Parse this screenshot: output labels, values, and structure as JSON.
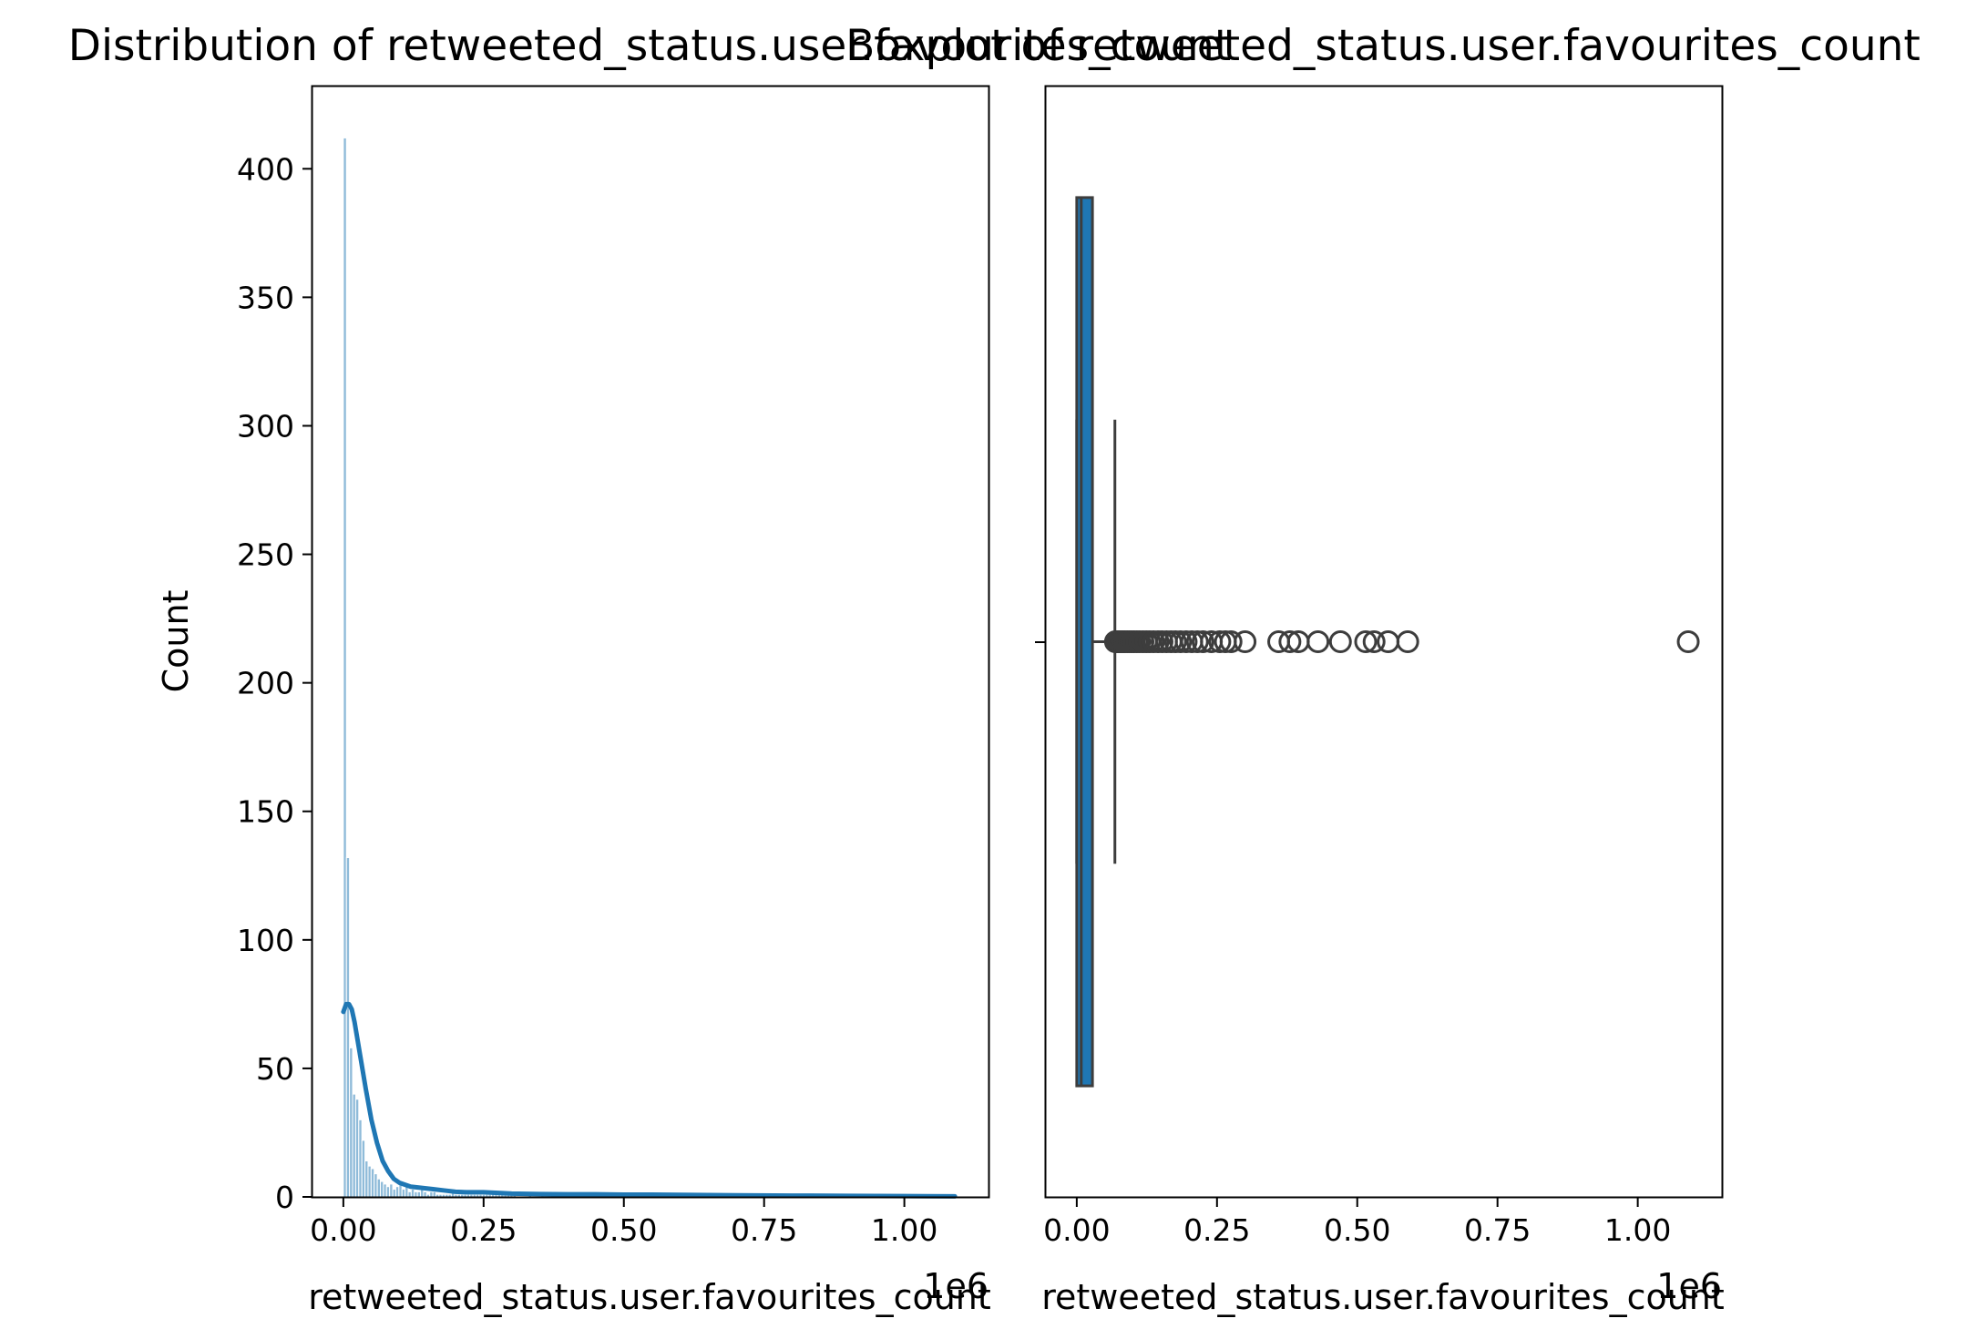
{
  "chart_data": [
    {
      "type": "histogram",
      "title": "Distribution of retweeted_status.user.favourites_count",
      "xlabel": "retweeted_status.user.favourites_count",
      "ylabel": "Count",
      "x_offset_label": "1e6",
      "xlim": [
        -0.055,
        1.15
      ],
      "ylim": [
        0,
        432
      ],
      "x_ticks": [
        0.0,
        0.25,
        0.5,
        0.75,
        1.0
      ],
      "x_tick_labels": [
        "0.00",
        "0.25",
        "0.50",
        "0.75",
        "1.00"
      ],
      "y_ticks": [
        0,
        50,
        100,
        150,
        200,
        250,
        300,
        350,
        400
      ],
      "y_tick_labels": [
        "0",
        "50",
        "100",
        "150",
        "200",
        "250",
        "300",
        "350",
        "400"
      ],
      "bin_width": 0.0055,
      "bin_starts": [
        0.0,
        0.0055,
        0.011,
        0.0165,
        0.022,
        0.0275,
        0.033,
        0.0385,
        0.044,
        0.0495,
        0.055,
        0.0605,
        0.066,
        0.0715,
        0.077,
        0.0825,
        0.088,
        0.0935,
        0.099,
        0.1045,
        0.11,
        0.1155,
        0.121,
        0.1265,
        0.132,
        0.1375,
        0.143,
        0.1485,
        0.154,
        0.1595,
        0.165,
        0.1705,
        0.176,
        0.1815,
        0.187,
        0.1925,
        0.198,
        0.2035,
        0.209,
        0.2145,
        0.22,
        0.2255,
        0.231,
        0.2365,
        0.242,
        0.2475,
        0.253,
        0.2585,
        0.264,
        0.2695,
        0.275,
        0.2805,
        0.286,
        0.2915,
        0.297,
        0.3025,
        0.33,
        0.352,
        0.374,
        0.396,
        0.418,
        0.462,
        0.517,
        0.528,
        0.55,
        0.583,
        1.089
      ],
      "counts": [
        412,
        132,
        58,
        40,
        38,
        30,
        22,
        14,
        12,
        11,
        9,
        7,
        6,
        5,
        4,
        5,
        3,
        4,
        6,
        3,
        4,
        2,
        3,
        2,
        2,
        3,
        2,
        1,
        2,
        2,
        1,
        1,
        1,
        1,
        1,
        2,
        1,
        1,
        1,
        1,
        1,
        1,
        1,
        1,
        1,
        1,
        1,
        1,
        2,
        1,
        1,
        1,
        1,
        1,
        1,
        1,
        1,
        1,
        1,
        1,
        1,
        1,
        1,
        1,
        1,
        1,
        1
      ],
      "kde": {
        "x": [
          0.0,
          0.005,
          0.01,
          0.015,
          0.02,
          0.03,
          0.04,
          0.05,
          0.06,
          0.07,
          0.08,
          0.09,
          0.1,
          0.12,
          0.14,
          0.16,
          0.18,
          0.2,
          0.22,
          0.25,
          0.28,
          0.3,
          0.35,
          0.4,
          0.45,
          0.5,
          0.55,
          0.6,
          0.7,
          0.8,
          0.9,
          1.0,
          1.09
        ],
        "y": [
          72,
          75,
          75,
          73,
          68,
          55,
          42,
          30,
          21,
          14,
          10,
          7,
          5.5,
          4,
          3.5,
          3,
          2.5,
          2,
          1.8,
          1.8,
          1.5,
          1.3,
          1.1,
          1.0,
          1.0,
          0.9,
          0.9,
          0.8,
          0.6,
          0.5,
          0.4,
          0.3,
          0.2
        ]
      },
      "bar_color": "#1f77b4",
      "line_color": "#1f77b4"
    },
    {
      "type": "boxplot",
      "title": "Boxplot of retweeted_status.user.favourites_count",
      "xlabel": "retweeted_status.user.favourites_count",
      "x_offset_label": "1e6",
      "xlim": [
        -0.055,
        1.15
      ],
      "x_ticks": [
        0.0,
        0.25,
        0.5,
        0.75,
        1.0
      ],
      "x_tick_labels": [
        "0.00",
        "0.25",
        "0.50",
        "0.75",
        "1.00"
      ],
      "box": {
        "q1": 0.0,
        "q3": 0.028,
        "median": 0.008,
        "whisker_low": 0.0,
        "whisker_high": 0.068
      },
      "outliers": [
        0.069,
        0.071,
        0.073,
        0.075,
        0.077,
        0.08,
        0.083,
        0.086,
        0.09,
        0.094,
        0.098,
        0.102,
        0.107,
        0.112,
        0.118,
        0.124,
        0.13,
        0.137,
        0.145,
        0.152,
        0.16,
        0.168,
        0.176,
        0.185,
        0.195,
        0.205,
        0.215,
        0.225,
        0.24,
        0.255,
        0.265,
        0.275,
        0.3,
        0.36,
        0.38,
        0.395,
        0.43,
        0.47,
        0.515,
        0.53,
        0.555,
        0.59,
        1.09
      ],
      "box_color": "#1f77b4",
      "edge_color": "#3d3d3d"
    }
  ]
}
